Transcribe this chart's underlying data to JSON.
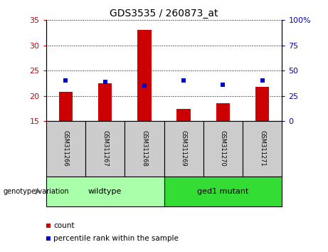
{
  "title": "GDS3535 / 260873_at",
  "samples": [
    "GSM311266",
    "GSM311267",
    "GSM311268",
    "GSM311269",
    "GSM311270",
    "GSM311271"
  ],
  "bar_values": [
    20.8,
    22.5,
    33.0,
    17.4,
    18.5,
    21.7
  ],
  "dot_values_left_scale": [
    23.0,
    22.8,
    22.0,
    23.0,
    22.2,
    23.0
  ],
  "bar_color": "#cc0000",
  "dot_color": "#0000cc",
  "ylim_left": [
    15,
    35
  ],
  "ylim_right": [
    0,
    100
  ],
  "yticks_left": [
    15,
    20,
    25,
    30,
    35
  ],
  "yticks_right": [
    0,
    25,
    50,
    75,
    100
  ],
  "ytick_labels_right": [
    "0",
    "25",
    "50",
    "75",
    "100%"
  ],
  "groups": [
    {
      "label": "wildtype",
      "indices": [
        0,
        1,
        2
      ],
      "color": "#aaffaa"
    },
    {
      "label": "ged1 mutant",
      "indices": [
        3,
        4,
        5
      ],
      "color": "#33dd33"
    }
  ],
  "group_label": "genotype/variation",
  "legend_count_label": "count",
  "legend_pct_label": "percentile rank within the sample",
  "sample_bg": "#cccccc",
  "bar_width": 0.35,
  "dot_size": 25,
  "title_fontsize": 10,
  "axis_fontsize": 8,
  "sample_fontsize": 6,
  "group_fontsize": 8,
  "legend_fontsize": 7.5
}
